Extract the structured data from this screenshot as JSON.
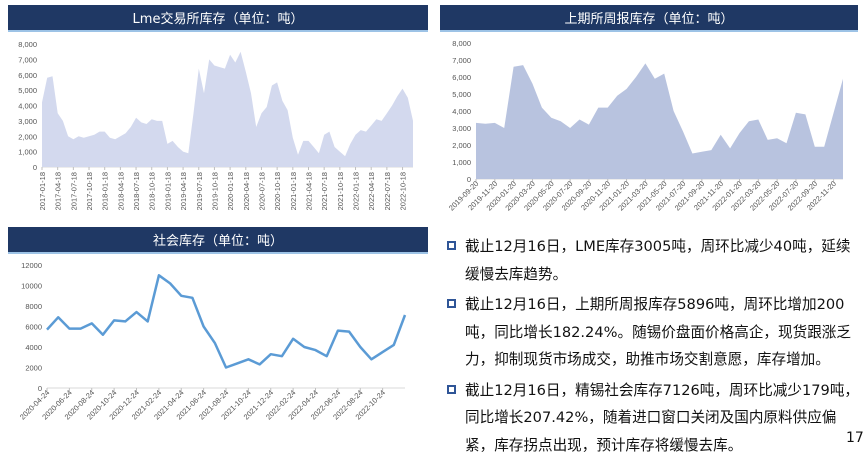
{
  "colors": {
    "title_bar": "#1f3864",
    "lme_fill": "#d3d9ee",
    "shfe_fill": "#b8c3df",
    "social_line": "#5b9bd5",
    "bullet": "#2f5597"
  },
  "chart_data": [
    {
      "type": "area",
      "title": "Lme交易所库存（单位：吨）",
      "ylim": [
        0,
        8000
      ],
      "yticks": [
        "0",
        "1,000",
        "2,000",
        "3,000",
        "4,000",
        "5,000",
        "6,000",
        "7,000",
        "8,000"
      ],
      "xtick_labels": [
        "2017-01-18",
        "2017-04-18",
        "2017-07-18",
        "2017-10-18",
        "2018-01-18",
        "2018-04-18",
        "2018-07-18",
        "2018-10-18",
        "2019-01-18",
        "2019-04-18",
        "2019-07-18",
        "2019-10-18",
        "2020-01-18",
        "2020-04-18",
        "2020-07-18",
        "2020-10-18",
        "2021-01-18",
        "2021-04-18",
        "2021-07-18",
        "2021-10-18",
        "2022-01-18",
        "2022-04-18",
        "2022-07-18",
        "2022-10-18"
      ],
      "x": [
        "2017-01",
        "2017-02",
        "2017-03",
        "2017-04",
        "2017-05",
        "2017-06",
        "2017-07",
        "2017-08",
        "2017-09",
        "2017-10",
        "2017-11",
        "2017-12",
        "2018-01",
        "2018-02",
        "2018-03",
        "2018-04",
        "2018-05",
        "2018-06",
        "2018-07",
        "2018-08",
        "2018-09",
        "2018-10",
        "2018-11",
        "2018-12",
        "2019-01",
        "2019-02",
        "2019-03",
        "2019-04",
        "2019-05",
        "2019-06",
        "2019-07",
        "2019-08",
        "2019-09",
        "2019-10",
        "2019-11",
        "2019-12",
        "2020-01",
        "2020-02",
        "2020-03",
        "2020-04",
        "2020-05",
        "2020-06",
        "2020-07",
        "2020-08",
        "2020-09",
        "2020-10",
        "2020-11",
        "2020-12",
        "2021-01",
        "2021-02",
        "2021-03",
        "2021-04",
        "2021-05",
        "2021-06",
        "2021-07",
        "2021-08",
        "2021-09",
        "2021-10",
        "2021-11",
        "2021-12",
        "2022-01",
        "2022-02",
        "2022-03",
        "2022-04",
        "2022-05",
        "2022-06",
        "2022-07",
        "2022-08",
        "2022-09",
        "2022-10",
        "2022-11",
        "2022-12"
      ],
      "values": [
        4200,
        5800,
        5900,
        3500,
        3000,
        2000,
        1800,
        2000,
        1900,
        2000,
        2100,
        2300,
        2300,
        1900,
        1800,
        2000,
        2200,
        2600,
        3200,
        2900,
        2800,
        3100,
        3000,
        3000,
        1500,
        1700,
        1300,
        1000,
        900,
        3500,
        6400,
        4800,
        7000,
        6600,
        6500,
        6400,
        7300,
        6800,
        7500,
        6200,
        4800,
        2600,
        3500,
        3900,
        5300,
        5500,
        4300,
        3700,
        1900,
        800,
        1700,
        1700,
        1300,
        900,
        2100,
        2300,
        1300,
        1000,
        700,
        1500,
        2100,
        2400,
        2300,
        2700,
        3100,
        3000,
        3500,
        4000,
        4600,
        5100,
        4500,
        3005
      ]
    },
    {
      "type": "area",
      "title": "上期所周报库存（单位：吨）",
      "ylim": [
        0,
        8000
      ],
      "yticks": [
        "0",
        "1,000",
        "2,000",
        "3,000",
        "4,000",
        "5,000",
        "6,000",
        "7,000",
        "8,000"
      ],
      "xtick_labels": [
        "2019-09-20",
        "2019-11-20",
        "2020-01-20",
        "2020-03-20",
        "2020-05-20",
        "2020-07-20",
        "2020-09-20",
        "2020-11-20",
        "2021-01-20",
        "2021-03-20",
        "2021-05-20",
        "2021-07-20",
        "2021-09-20",
        "2021-11-20",
        "2022-01-20",
        "2022-03-20",
        "2022-05-20",
        "2022-07-20",
        "2022-09-20",
        "2022-11-20"
      ],
      "x": [
        "2019-09",
        "2019-10",
        "2019-11",
        "2019-12",
        "2020-01",
        "2020-02",
        "2020-03",
        "2020-04",
        "2020-05",
        "2020-06",
        "2020-07",
        "2020-08",
        "2020-09",
        "2020-10",
        "2020-11",
        "2020-12",
        "2021-01",
        "2021-02",
        "2021-03",
        "2021-04",
        "2021-05",
        "2021-06",
        "2021-07",
        "2021-08",
        "2021-09",
        "2021-10",
        "2021-11",
        "2021-12",
        "2022-01",
        "2022-02",
        "2022-03",
        "2022-04",
        "2022-05",
        "2022-06",
        "2022-07",
        "2022-08",
        "2022-09",
        "2022-10",
        "2022-11",
        "2022-12"
      ],
      "values": [
        3300,
        3250,
        3300,
        3000,
        6600,
        6700,
        5600,
        4200,
        3600,
        3400,
        3000,
        3500,
        3200,
        4200,
        4200,
        4900,
        5300,
        6000,
        6800,
        5900,
        6200,
        4000,
        2800,
        1500,
        1600,
        1700,
        2600,
        1800,
        2700,
        3400,
        3500,
        2300,
        2400,
        2100,
        3900,
        3800,
        1900,
        1900,
        3900,
        5896
      ]
    },
    {
      "type": "line",
      "title": "社会库存（单位：吨）",
      "ylim": [
        0,
        12000
      ],
      "yticks": [
        "0",
        "2000",
        "4000",
        "6000",
        "8000",
        "10000",
        "12000"
      ],
      "xtick_labels": [
        "2020-04-24",
        "2020-06-24",
        "2020-08-24",
        "2020-10-24",
        "2020-12-24",
        "2021-02-24",
        "2021-04-24",
        "2021-06-24",
        "2021-08-24",
        "2021-10-24",
        "2021-12-24",
        "2022-02-24",
        "2022-04-24",
        "2022-06-24",
        "2022-08-24",
        "2022-10-24"
      ],
      "x": [
        "2020-04",
        "2020-05",
        "2020-06",
        "2020-07",
        "2020-08",
        "2020-09",
        "2020-10",
        "2020-11",
        "2020-12",
        "2021-01",
        "2021-02",
        "2021-03",
        "2021-04",
        "2021-05",
        "2021-06",
        "2021-07",
        "2021-08",
        "2021-09",
        "2021-10",
        "2021-11",
        "2021-12",
        "2022-01",
        "2022-02",
        "2022-03",
        "2022-04",
        "2022-05",
        "2022-06",
        "2022-07",
        "2022-08",
        "2022-09",
        "2022-10",
        "2022-11",
        "2022-12"
      ],
      "values": [
        5700,
        6900,
        5800,
        5800,
        6300,
        5200,
        6600,
        6500,
        7400,
        6500,
        11000,
        10200,
        9000,
        8800,
        6000,
        4400,
        2000,
        2400,
        2800,
        2300,
        3300,
        3100,
        4800,
        4000,
        3700,
        3100,
        5600,
        5500,
        4000,
        2800,
        3500,
        4200,
        7126
      ]
    }
  ],
  "bullets": [
    "截止12月16日，LME库存3005吨，周环比减少40吨，延续缓慢去库趋势。",
    "截止12月16日，上期所周报库存5896吨，周环比增加200吨，同比增长182.24%。随锡价盘面价格高企，现货跟涨乏力，抑制现货市场成交，助推市场交割意愿，库存增加。",
    "截止12月16日，精锡社会库存7126吨，周环比减少179吨，同比增长207.42%，随着进口窗口关闭及国内原料供应偏紧，库存拐点出现，预计库存将缓慢去库。"
  ],
  "page_number": "17"
}
